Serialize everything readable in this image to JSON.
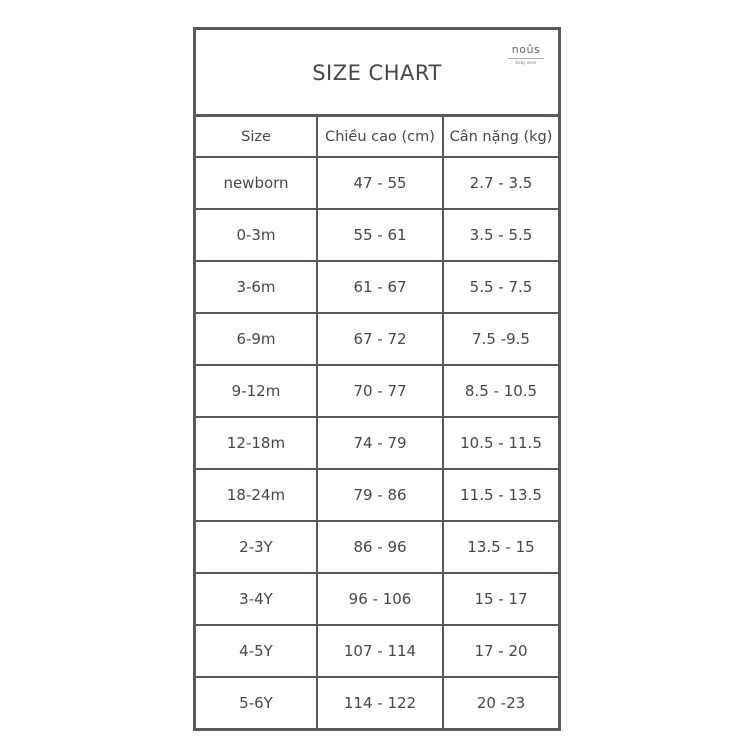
{
  "title": "SIZE CHART",
  "logo": {
    "brand": "noûs",
    "subtitle": "Baby wear"
  },
  "columns": [
    "Size",
    "Chiều cao (cm)",
    "Cân nặng (kg)"
  ],
  "rows": [
    [
      "newborn",
      "47 - 55",
      "2.7 - 3.5"
    ],
    [
      "0-3m",
      "55 - 61",
      "3.5 - 5.5"
    ],
    [
      "3-6m",
      "61 - 67",
      "5.5 - 7.5"
    ],
    [
      "6-9m",
      "67 - 72",
      "7.5 -9.5"
    ],
    [
      "9-12m",
      "70 - 77",
      "8.5 - 10.5"
    ],
    [
      "12-18m",
      "74 - 79",
      "10.5 - 11.5"
    ],
    [
      "18-24m",
      "79 - 86",
      "11.5 - 13.5"
    ],
    [
      "2-3Y",
      "86 - 96",
      "13.5 - 15"
    ],
    [
      "3-4Y",
      "96 - 106",
      "15 - 17"
    ],
    [
      "4-5Y",
      "107 - 114",
      "17 - 20"
    ],
    [
      "5-6Y",
      "114 - 122",
      "20 -23"
    ]
  ]
}
